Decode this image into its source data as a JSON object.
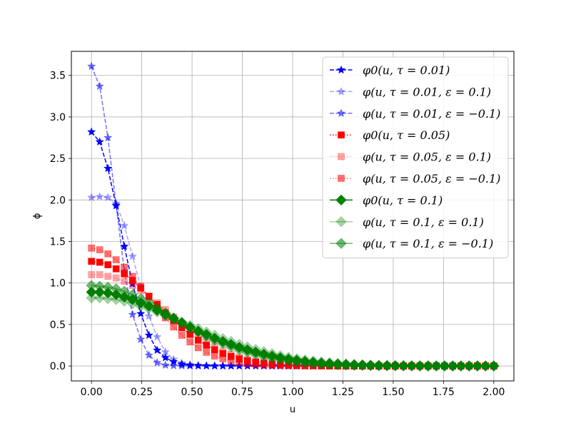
{
  "chart_data": {
    "type": "line",
    "title": "",
    "xlabel": "u",
    "ylabel": "ϕ",
    "xlim": [
      -0.1,
      2.1
    ],
    "ylim": [
      -0.18,
      3.79
    ],
    "xticks": [
      "0.00",
      "0.25",
      "0.50",
      "0.75",
      "1.00",
      "1.25",
      "1.50",
      "1.75",
      "2.00"
    ],
    "yticks": [
      "0.0",
      "0.5",
      "1.0",
      "1.5",
      "2.0",
      "2.5",
      "3.0",
      "3.5"
    ],
    "grid": true,
    "legend_position": "top-right",
    "x": [
      0.0,
      0.0408,
      0.0816,
      0.1224,
      0.1633,
      0.2041,
      0.2449,
      0.2857,
      0.3265,
      0.3673,
      0.4082,
      0.449,
      0.4898,
      0.5306,
      0.5714,
      0.6122,
      0.6531,
      0.6939,
      0.7347,
      0.7755,
      0.8163,
      0.8571,
      0.898,
      0.9388,
      0.9796,
      1.0204,
      1.0612,
      1.102,
      1.1429,
      1.1837,
      1.2245,
      1.2653,
      1.3061,
      1.3469,
      1.3878,
      1.4286,
      1.4694,
      1.5102,
      1.551,
      1.5918,
      1.6327,
      1.6735,
      1.7143,
      1.7551,
      1.7959,
      1.8367,
      1.8776,
      1.9184,
      1.9592,
      2.0
    ],
    "series": [
      {
        "name": "φ0(u, τ = 0.01)",
        "color": "#0000ff",
        "marker": "star",
        "linestyle": "dashed",
        "alpha": 1.0,
        "values": [
          2.82,
          2.7,
          2.38,
          1.93,
          1.44,
          0.99,
          0.63,
          0.37,
          0.19,
          0.1,
          0.05,
          0.02,
          0.01,
          0.005,
          0.002,
          0.001,
          0.0005,
          0.0002,
          0.0001,
          0,
          0,
          0,
          0,
          0,
          0,
          0,
          0,
          0,
          0,
          0,
          0,
          0,
          0,
          0,
          0,
          0,
          0,
          0,
          0,
          0,
          0,
          0,
          0,
          0,
          0,
          0,
          0,
          0,
          0,
          0
        ]
      },
      {
        "name": "φ(u, τ = 0.01, ε = 0.1)",
        "color": "#0000ff",
        "marker": "star",
        "linestyle": "dashed",
        "alpha": 0.35,
        "values": [
          2.03,
          2.04,
          2.03,
          1.96,
          1.69,
          1.32,
          0.95,
          0.6,
          0.35,
          0.17,
          0.08,
          0.035,
          0.015,
          0.006,
          0.002,
          0.001,
          0.0004,
          0.0001,
          0,
          0,
          0,
          0,
          0,
          0,
          0,
          0,
          0,
          0,
          0,
          0,
          0,
          0,
          0,
          0,
          0,
          0,
          0,
          0,
          0,
          0,
          0,
          0,
          0,
          0,
          0,
          0,
          0,
          0,
          0,
          0
        ]
      },
      {
        "name": "φ(u, τ = 0.01, ε = −0.1)",
        "color": "#0000ff",
        "marker": "star",
        "linestyle": "dashed",
        "alpha": 0.55,
        "values": [
          3.61,
          3.37,
          2.75,
          1.94,
          1.14,
          0.62,
          0.32,
          0.13,
          0.04,
          0.01,
          0.003,
          0.001,
          0.0003,
          0.0001,
          0,
          0,
          0,
          0,
          0,
          0,
          0,
          0,
          0,
          0,
          0,
          0,
          0,
          0,
          0,
          0,
          0,
          0,
          0,
          0,
          0,
          0,
          0,
          0,
          0,
          0,
          0,
          0,
          0,
          0,
          0,
          0,
          0,
          0,
          0,
          0
        ]
      },
      {
        "name": "φ0(u, τ = 0.05)",
        "color": "#ff0000",
        "marker": "square",
        "linestyle": "dotted",
        "alpha": 1.0,
        "values": [
          1.26,
          1.25,
          1.22,
          1.17,
          1.11,
          1.03,
          0.94,
          0.84,
          0.74,
          0.64,
          0.55,
          0.46,
          0.38,
          0.31,
          0.25,
          0.195,
          0.15,
          0.115,
          0.085,
          0.063,
          0.045,
          0.032,
          0.022,
          0.015,
          0.01,
          0.0065,
          0.0042,
          0.0027,
          0.0017,
          0.001,
          0.0006,
          0.0004,
          0.0002,
          0.0001,
          0,
          0,
          0,
          0,
          0,
          0,
          0,
          0,
          0,
          0,
          0,
          0,
          0,
          0,
          0,
          0
        ]
      },
      {
        "name": "φ(u, τ = 0.05, ε = 0.1)",
        "color": "#ff0000",
        "marker": "square",
        "linestyle": "dotted",
        "alpha": 0.35,
        "values": [
          1.1,
          1.1,
          1.08,
          1.06,
          1.02,
          0.97,
          0.91,
          0.84,
          0.76,
          0.68,
          0.59,
          0.51,
          0.43,
          0.36,
          0.29,
          0.23,
          0.18,
          0.14,
          0.105,
          0.078,
          0.056,
          0.04,
          0.028,
          0.019,
          0.013,
          0.0085,
          0.0055,
          0.0035,
          0.0022,
          0.0013,
          0.0008,
          0.0005,
          0.0003,
          0.0002,
          0.0001,
          0,
          0,
          0,
          0,
          0,
          0,
          0,
          0,
          0,
          0,
          0,
          0,
          0,
          0,
          0
        ]
      },
      {
        "name": "φ(u, τ = 0.05, ε = −0.1)",
        "color": "#ff0000",
        "marker": "square",
        "linestyle": "dotted",
        "alpha": 0.55,
        "values": [
          1.42,
          1.4,
          1.35,
          1.28,
          1.19,
          1.08,
          0.96,
          0.83,
          0.7,
          0.58,
          0.47,
          0.37,
          0.29,
          0.22,
          0.165,
          0.12,
          0.087,
          0.061,
          0.042,
          0.029,
          0.019,
          0.012,
          0.008,
          0.005,
          0.003,
          0.0018,
          0.001,
          0.0006,
          0.0003,
          0.0002,
          0.0001,
          0,
          0,
          0,
          0,
          0,
          0,
          0,
          0,
          0,
          0,
          0,
          0,
          0,
          0,
          0,
          0,
          0,
          0,
          0
        ]
      },
      {
        "name": "φ0(u, τ = 0.1)",
        "color": "#008000",
        "marker": "diamond",
        "linestyle": "solid",
        "alpha": 1.0,
        "values": [
          0.89,
          0.89,
          0.88,
          0.86,
          0.83,
          0.8,
          0.76,
          0.72,
          0.67,
          0.62,
          0.57,
          0.52,
          0.47,
          0.42,
          0.38,
          0.335,
          0.295,
          0.26,
          0.225,
          0.195,
          0.167,
          0.142,
          0.12,
          0.1,
          0.083,
          0.068,
          0.056,
          0.045,
          0.036,
          0.029,
          0.023,
          0.018,
          0.014,
          0.011,
          0.008,
          0.006,
          0.0045,
          0.0033,
          0.0024,
          0.0017,
          0.0012,
          0.0009,
          0.0006,
          0.0004,
          0.0003,
          0.0002,
          0.0001,
          0.0001,
          0,
          0
        ]
      },
      {
        "name": "φ(u, τ = 0.1, ε = 0.1)",
        "color": "#008000",
        "marker": "diamond",
        "linestyle": "solid",
        "alpha": 0.35,
        "values": [
          0.82,
          0.82,
          0.81,
          0.8,
          0.78,
          0.75,
          0.72,
          0.69,
          0.65,
          0.61,
          0.57,
          0.53,
          0.49,
          0.45,
          0.41,
          0.37,
          0.33,
          0.295,
          0.26,
          0.23,
          0.2,
          0.173,
          0.148,
          0.126,
          0.106,
          0.089,
          0.074,
          0.061,
          0.05,
          0.04,
          0.032,
          0.026,
          0.02,
          0.016,
          0.012,
          0.009,
          0.007,
          0.005,
          0.004,
          0.003,
          0.002,
          0.0015,
          0.001,
          0.0007,
          0.0005,
          0.0003,
          0.0002,
          0.0001,
          0.0001,
          0
        ]
      },
      {
        "name": "φ(u, τ = 0.1, ε = −0.1)",
        "color": "#008000",
        "marker": "diamond",
        "linestyle": "solid",
        "alpha": 0.55,
        "values": [
          0.97,
          0.96,
          0.95,
          0.93,
          0.9,
          0.86,
          0.81,
          0.76,
          0.7,
          0.64,
          0.58,
          0.52,
          0.46,
          0.41,
          0.36,
          0.31,
          0.27,
          0.23,
          0.195,
          0.165,
          0.138,
          0.114,
          0.094,
          0.077,
          0.062,
          0.05,
          0.04,
          0.031,
          0.024,
          0.019,
          0.014,
          0.011,
          0.008,
          0.006,
          0.0045,
          0.0033,
          0.0024,
          0.0017,
          0.0012,
          0.0008,
          0.0006,
          0.0004,
          0.0003,
          0.0002,
          0.0001,
          0.0001,
          0,
          0,
          0,
          0
        ]
      }
    ]
  }
}
